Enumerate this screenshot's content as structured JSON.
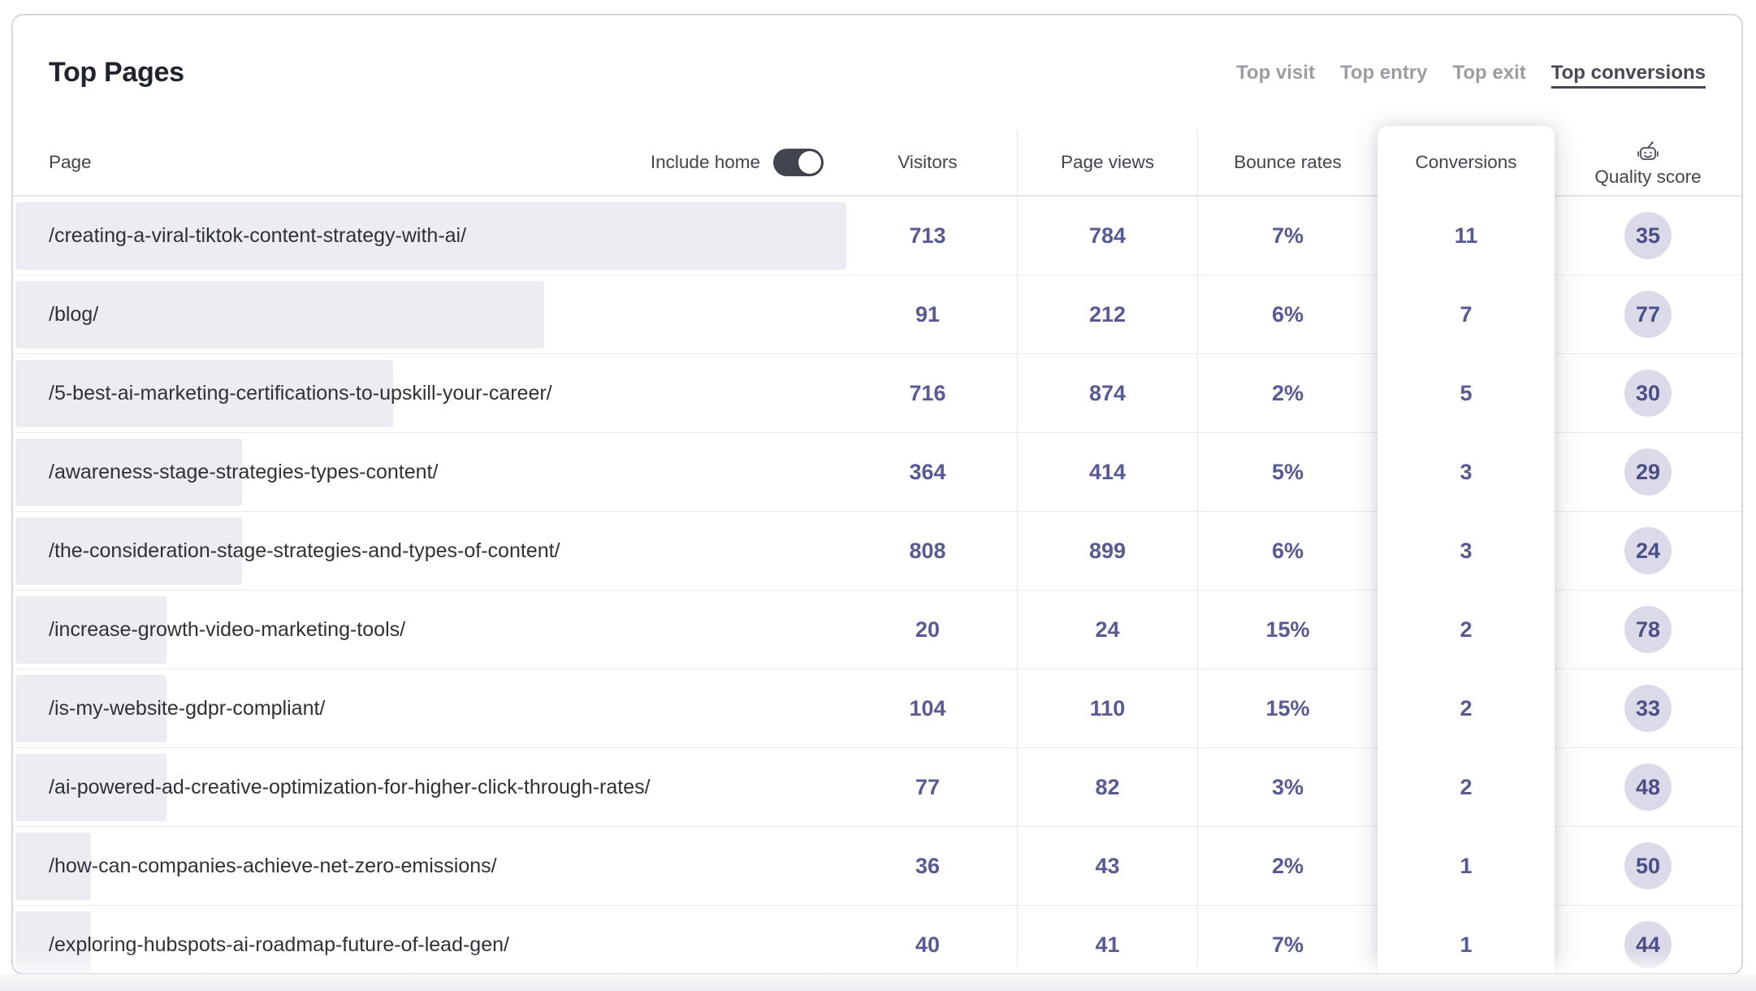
{
  "card": {
    "title": "Top Pages",
    "tabs": [
      {
        "label": "Top visit",
        "active": false
      },
      {
        "label": "Top entry",
        "active": false
      },
      {
        "label": "Top exit",
        "active": false
      },
      {
        "label": "Top conversions",
        "active": true
      }
    ],
    "include_home": {
      "label": "Include home",
      "on": true
    }
  },
  "chart_data": {
    "type": "table",
    "title": "Top Pages",
    "columns": [
      "Page",
      "Visitors",
      "Page views",
      "Bounce rates",
      "Conversions",
      "Quality score"
    ],
    "bar_metric": "conversions",
    "bar_max": 11,
    "rows": [
      {
        "page": "/creating-a-viral-tiktok-content-strategy-with-ai/",
        "visitors": "713",
        "page_views": "784",
        "bounce_rate": "7%",
        "conversions": "11",
        "quality_score": "35"
      },
      {
        "page": "/blog/",
        "visitors": "91",
        "page_views": "212",
        "bounce_rate": "6%",
        "conversions": "7",
        "quality_score": "77"
      },
      {
        "page": "/5-best-ai-marketing-certifications-to-upskill-your-career/",
        "visitors": "716",
        "page_views": "874",
        "bounce_rate": "2%",
        "conversions": "5",
        "quality_score": "30"
      },
      {
        "page": "/awareness-stage-strategies-types-content/",
        "visitors": "364",
        "page_views": "414",
        "bounce_rate": "5%",
        "conversions": "3",
        "quality_score": "29"
      },
      {
        "page": "/the-consideration-stage-strategies-and-types-of-content/",
        "visitors": "808",
        "page_views": "899",
        "bounce_rate": "6%",
        "conversions": "3",
        "quality_score": "24"
      },
      {
        "page": "/increase-growth-video-marketing-tools/",
        "visitors": "20",
        "page_views": "24",
        "bounce_rate": "15%",
        "conversions": "2",
        "quality_score": "78"
      },
      {
        "page": "/is-my-website-gdpr-compliant/",
        "visitors": "104",
        "page_views": "110",
        "bounce_rate": "15%",
        "conversions": "2",
        "quality_score": "33"
      },
      {
        "page": "/ai-powered-ad-creative-optimization-for-higher-click-through-rates/",
        "visitors": "77",
        "page_views": "82",
        "bounce_rate": "3%",
        "conversions": "2",
        "quality_score": "48"
      },
      {
        "page": "/how-can-companies-achieve-net-zero-emissions/",
        "visitors": "36",
        "page_views": "43",
        "bounce_rate": "2%",
        "conversions": "1",
        "quality_score": "50"
      },
      {
        "page": "/exploring-hubspots-ai-roadmap-future-of-lead-gen/",
        "visitors": "40",
        "page_views": "41",
        "bounce_rate": "7%",
        "conversions": "1",
        "quality_score": "44"
      }
    ]
  },
  "colors": {
    "accent_number_text": "#575a93",
    "badge_bg": "#dbdae9",
    "badge_text": "#4c4f86",
    "bar_bg": "#ececf2",
    "toggle_on_bg": "#40454f",
    "card_border": "#d6d8e0",
    "tab_inactive": "#9b9ca4",
    "tab_active": "#454a55"
  }
}
